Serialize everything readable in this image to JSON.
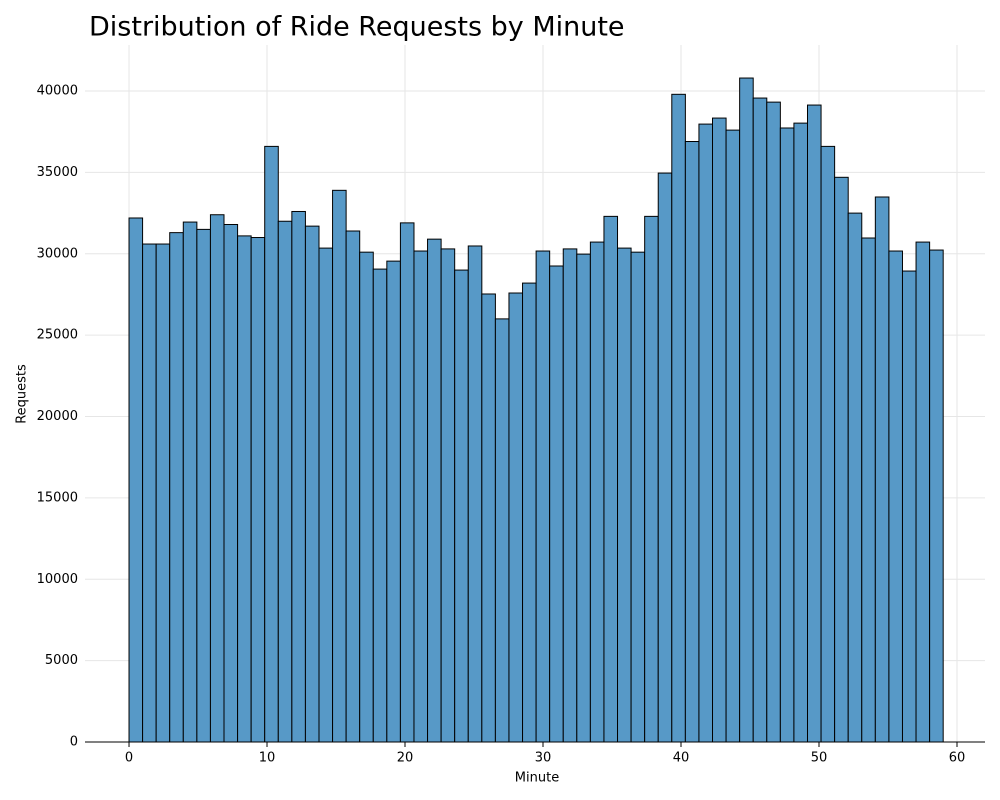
{
  "chart_data": {
    "type": "histogram",
    "title": "Distribution of Ride Requests by Minute",
    "xlabel": "Minute",
    "ylabel": "Requests",
    "bins": [
      0,
      0.983,
      1.967,
      2.95,
      3.933,
      4.917,
      5.9,
      6.883,
      7.867,
      8.85,
      9.833,
      10.817,
      11.8,
      12.783,
      13.767,
      14.75,
      15.733,
      16.717,
      17.7,
      18.683,
      19.667,
      20.65,
      21.633,
      22.617,
      23.6,
      24.583,
      25.567,
      26.55,
      27.533,
      28.517,
      29.5,
      30.483,
      31.467,
      32.45,
      33.433,
      34.417,
      35.4,
      36.383,
      37.367,
      38.35,
      39.333,
      40.317,
      41.3,
      42.283,
      43.267,
      44.25,
      45.233,
      46.217,
      47.2,
      48.183,
      49.167,
      50.15,
      51.133,
      52.117,
      53.1,
      54.083,
      55.067,
      56.05,
      57.033,
      58.017,
      59
    ],
    "values": [
      32200,
      30600,
      30600,
      31300,
      31950,
      31500,
      32400,
      31800,
      31100,
      31000,
      36600,
      32000,
      32600,
      31700,
      30350,
      33900,
      31400,
      30100,
      29060,
      29550,
      31900,
      30170,
      30900,
      30300,
      29000,
      30480,
      27530,
      26000,
      27590,
      28200,
      30170,
      29250,
      30300,
      29980,
      30720,
      32300,
      30350,
      30100,
      32300,
      34960,
      39800,
      36900,
      37970,
      38340,
      37600,
      40800,
      39570,
      39320,
      37730,
      38030,
      39140,
      36600,
      34700,
      32500,
      30970,
      33490,
      30170,
      28940,
      30720,
      30230
    ],
    "color": "#5799c7",
    "xlim": [
      -3.19,
      62.03
    ],
    "ylim": [
      0,
      42830
    ],
    "xticks": [
      0,
      10,
      20,
      30,
      40,
      50,
      60
    ],
    "yticks": [
      0,
      5000,
      10000,
      15000,
      20000,
      25000,
      30000,
      35000,
      40000
    ],
    "grid": true
  }
}
